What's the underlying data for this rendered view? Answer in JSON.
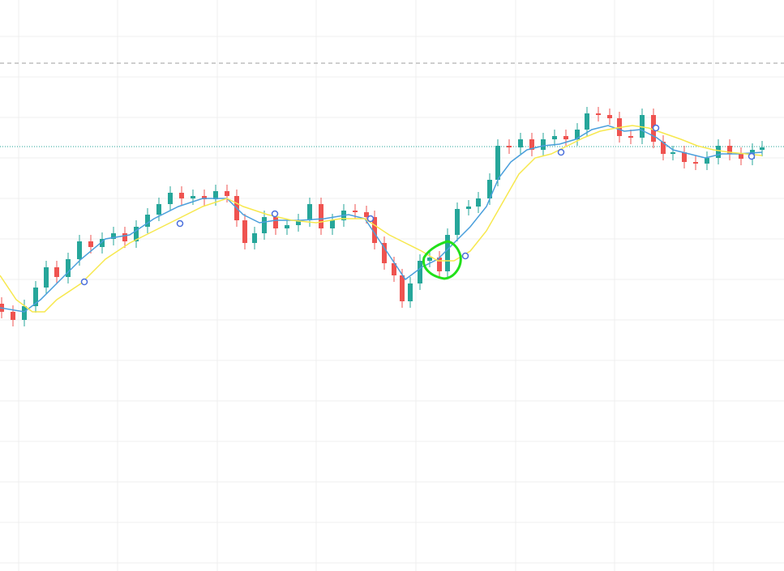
{
  "chart_data": {
    "type": "candlestick",
    "xlim": [
      0,
      967
    ],
    "ylim": [
      0,
      70.5
    ],
    "xgrid": [
      23,
      145,
      268,
      390,
      513,
      636,
      758,
      880
    ],
    "ygrid": [
      66,
      61,
      56,
      51,
      46,
      41,
      36,
      31,
      26,
      21,
      16,
      11,
      6,
      1
    ],
    "grid_color": "#efefef",
    "up_color": "#26a69a",
    "down_color": "#ef5350",
    "x": [
      2,
      16,
      30,
      44,
      57,
      70,
      84,
      98,
      112,
      126,
      140,
      154,
      168,
      182,
      196,
      210,
      224,
      238,
      252,
      266,
      280,
      292,
      302,
      314,
      326,
      340,
      354,
      368,
      382,
      396,
      410,
      424,
      438,
      452,
      462,
      474,
      486,
      496,
      506,
      518,
      530,
      542,
      552,
      564,
      578,
      590,
      604,
      614,
      628,
      642,
      656,
      670,
      684,
      698,
      712,
      724,
      738,
      752,
      764,
      778,
      792,
      806,
      818,
      830,
      844,
      858,
      872,
      886,
      900,
      914,
      928,
      940
    ],
    "open": [
      33.0,
      32.0,
      31.0,
      32.7,
      35.0,
      37.5,
      36.3,
      38.5,
      40.7,
      40.0,
      41.0,
      41.7,
      40.7,
      42.5,
      44.0,
      45.3,
      46.7,
      46.0,
      46.3,
      45.9,
      46.9,
      46.3,
      43.3,
      40.5,
      41.7,
      43.7,
      42.3,
      42.7,
      43.3,
      45.3,
      42.3,
      43.3,
      44.5,
      44.3,
      43.7,
      40.5,
      38.0,
      36.5,
      33.3,
      35.5,
      38.3,
      38.7,
      37.0,
      41.5,
      44.7,
      45.0,
      46.0,
      48.3,
      52.5,
      52.3,
      53.3,
      52.0,
      53.3,
      53.7,
      53.3,
      54.5,
      56.5,
      56.3,
      55.9,
      53.7,
      53.5,
      56.3,
      53.0,
      51.5,
      51.7,
      50.5,
      50.3,
      51.0,
      52.5,
      51.5,
      50.9,
      52.0
    ],
    "high": [
      33.8,
      32.8,
      33.5,
      35.8,
      38.3,
      38.3,
      39.3,
      41.5,
      41.5,
      41.8,
      42.5,
      42.5,
      43.3,
      44.8,
      46.1,
      47.5,
      47.5,
      47.1,
      47.1,
      47.7,
      47.7,
      47.1,
      44.1,
      42.5,
      44.5,
      44.5,
      43.5,
      44.1,
      46.1,
      46.1,
      44.1,
      45.3,
      45.3,
      45.1,
      44.5,
      41.3,
      38.8,
      37.3,
      36.3,
      39.1,
      39.5,
      39.5,
      42.3,
      45.5,
      45.8,
      46.8,
      49.1,
      53.3,
      53.3,
      54.1,
      54.1,
      54.1,
      54.5,
      54.5,
      55.3,
      57.3,
      57.3,
      57.1,
      56.7,
      54.5,
      57.1,
      57.1,
      53.8,
      52.5,
      52.5,
      51.3,
      51.8,
      53.3,
      53.3,
      52.3,
      52.8,
      53.1
    ],
    "low": [
      31.2,
      30.2,
      30.2,
      31.9,
      34.2,
      35.5,
      35.5,
      37.7,
      39.2,
      39.2,
      40.2,
      39.9,
      39.9,
      41.7,
      43.2,
      44.5,
      45.2,
      45.2,
      45.1,
      45.1,
      45.5,
      42.5,
      39.7,
      39.7,
      40.9,
      41.5,
      41.5,
      41.9,
      42.5,
      41.5,
      41.5,
      42.5,
      43.5,
      42.9,
      39.7,
      37.2,
      35.7,
      32.5,
      32.5,
      34.7,
      37.5,
      36.2,
      36.2,
      40.7,
      43.9,
      44.2,
      45.2,
      47.5,
      51.5,
      51.5,
      51.2,
      51.2,
      52.5,
      52.5,
      52.5,
      53.7,
      55.5,
      55.1,
      52.9,
      52.7,
      52.7,
      52.2,
      50.7,
      50.7,
      49.7,
      49.5,
      49.5,
      50.2,
      50.7,
      50.1,
      50.1,
      51.2
    ],
    "close": [
      32.0,
      31.0,
      32.7,
      35.0,
      37.5,
      36.3,
      38.5,
      40.7,
      40.0,
      41.0,
      41.7,
      40.7,
      42.5,
      44.0,
      45.3,
      46.7,
      46.0,
      46.3,
      45.9,
      46.9,
      46.3,
      43.3,
      40.5,
      41.7,
      43.7,
      42.3,
      42.7,
      43.3,
      45.3,
      42.3,
      43.3,
      44.5,
      44.3,
      43.7,
      40.5,
      38.0,
      36.5,
      33.3,
      35.5,
      38.3,
      38.7,
      37.0,
      41.5,
      44.7,
      45.0,
      46.0,
      48.3,
      52.5,
      52.3,
      53.3,
      52.0,
      53.3,
      53.7,
      53.3,
      54.5,
      56.5,
      56.3,
      55.9,
      53.7,
      53.5,
      56.3,
      53.0,
      51.5,
      51.7,
      50.5,
      50.3,
      51.0,
      52.5,
      51.5,
      50.9,
      52.0,
      52.3
    ],
    "lines": [
      {
        "color": "#4a9fdc",
        "x": [
          0,
          30,
          50,
          70,
          100,
          130,
          160,
          190,
          220,
          250,
          280,
          300,
          320,
          340,
          370,
          400,
          430,
          450,
          470,
          490,
          500,
          520,
          540,
          560,
          580,
          600,
          615,
          630,
          650,
          670,
          690,
          710,
          730,
          750,
          770,
          790,
          810,
          830,
          850,
          870,
          890,
          910,
          940
        ],
        "values": [
          32.5,
          32.0,
          33.5,
          35.5,
          38.5,
          41.0,
          41.5,
          43.5,
          45.0,
          46.0,
          46.0,
          44.0,
          43.0,
          43.3,
          43.3,
          43.5,
          44.0,
          43.5,
          40.5,
          37.5,
          36.0,
          37.5,
          38.5,
          40.5,
          42.5,
          45.0,
          48.5,
          50.5,
          52.0,
          52.5,
          52.7,
          53.3,
          54.5,
          55.0,
          54.3,
          54.5,
          53.5,
          52.0,
          51.5,
          51.0,
          51.5,
          51.5,
          51.7
        ]
      },
      {
        "color": "#f7e84e",
        "x": [
          0,
          20,
          40,
          55,
          70,
          100,
          130,
          160,
          190,
          220,
          250,
          280,
          300,
          330,
          360,
          390,
          420,
          450,
          480,
          500,
          520,
          540,
          560,
          580,
          600,
          620,
          640,
          660,
          680,
          700,
          720,
          740,
          760,
          780,
          800,
          820,
          840,
          860,
          880,
          900,
          920,
          940
        ],
        "values": [
          36.5,
          33.5,
          32.0,
          32.0,
          33.5,
          35.5,
          38.5,
          40.5,
          42.0,
          43.5,
          45.0,
          46.0,
          45.0,
          44.0,
          43.3,
          43.0,
          43.5,
          43.5,
          41.5,
          40.5,
          39.5,
          38.3,
          38.3,
          39.5,
          42.0,
          45.5,
          49.0,
          51.0,
          51.5,
          52.5,
          53.5,
          54.3,
          54.7,
          55.0,
          54.7,
          54.0,
          53.3,
          52.5,
          52.0,
          51.7,
          51.5,
          51.3
        ]
      }
    ],
    "markers": {
      "color": "#4a6fdc",
      "x": [
        104,
        222,
        339,
        457,
        574,
        692,
        809,
        927
      ],
      "values": [
        35.7,
        42.9,
        44.1,
        43.5,
        38.9,
        51.7,
        54.7,
        51.2
      ]
    },
    "dashed_level": {
      "value": 62.7,
      "color": "#9e9e9e"
    },
    "dotted_level": {
      "value": 52.4,
      "color": "#26a69a"
    }
  }
}
